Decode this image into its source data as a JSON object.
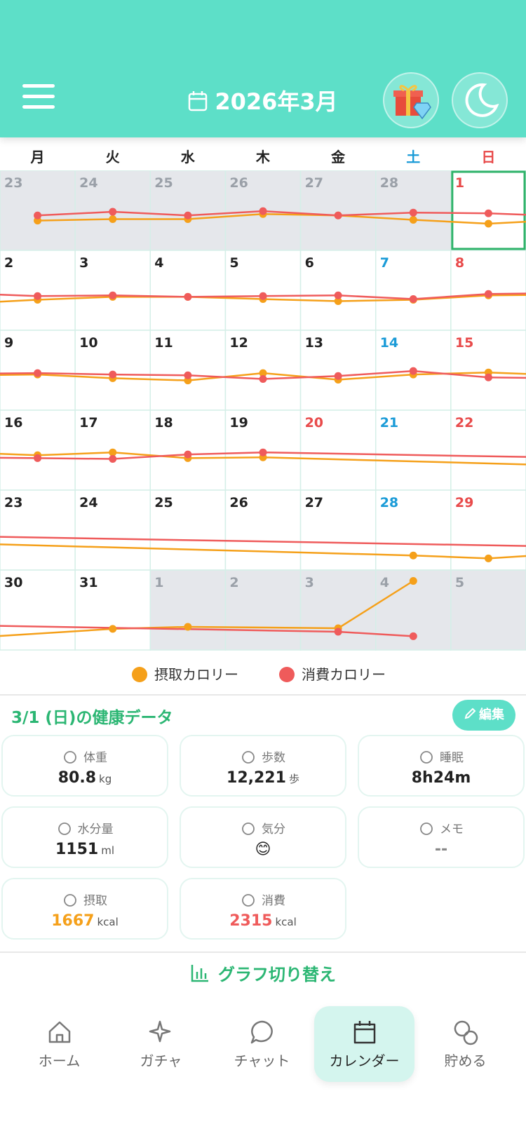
{
  "header": {
    "title": "2026年3月"
  },
  "calendar": {
    "weekdays": [
      "月",
      "火",
      "水",
      "木",
      "金",
      "土",
      "日"
    ],
    "weeks": [
      [
        {
          "day": 23,
          "muted": true
        },
        {
          "day": 24,
          "muted": true
        },
        {
          "day": 25,
          "muted": true
        },
        {
          "day": 26,
          "muted": true
        },
        {
          "day": 27,
          "muted": true
        },
        {
          "day": 28,
          "muted": true
        },
        {
          "day": 1,
          "selected": true
        }
      ],
      [
        {
          "day": 2
        },
        {
          "day": 3
        },
        {
          "day": 4
        },
        {
          "day": 5
        },
        {
          "day": 6
        },
        {
          "day": 7
        },
        {
          "day": 8
        }
      ],
      [
        {
          "day": 9
        },
        {
          "day": 10
        },
        {
          "day": 11
        },
        {
          "day": 12
        },
        {
          "day": 13
        },
        {
          "day": 14
        },
        {
          "day": 15
        }
      ],
      [
        {
          "day": 16
        },
        {
          "day": 17
        },
        {
          "day": 18
        },
        {
          "day": 19
        },
        {
          "day": 20,
          "holiday": true
        },
        {
          "day": 21
        },
        {
          "day": 22
        }
      ],
      [
        {
          "day": 23
        },
        {
          "day": 24
        },
        {
          "day": 25
        },
        {
          "day": 26
        },
        {
          "day": 27
        },
        {
          "day": 28
        },
        {
          "day": 29
        }
      ],
      [
        {
          "day": 30
        },
        {
          "day": 31
        },
        {
          "day": 1,
          "muted": true
        },
        {
          "day": 2,
          "muted": true
        },
        {
          "day": 3,
          "muted": true
        },
        {
          "day": 4,
          "muted": true
        },
        {
          "day": 5,
          "muted": true
        }
      ]
    ]
  },
  "chart_data": {
    "type": "line",
    "ylim": [
      0,
      5000
    ],
    "series": [
      {
        "name": "摂取カロリー",
        "color": "#f5a01a",
        "values": [
          1860,
          1950,
          1950,
          2270,
          2180,
          1910,
          1667,
          1910,
          2090,
          2090,
          1950,
          1820,
          1910,
          2180,
          2230,
          2000,
          1860,
          2320,
          1910,
          2230,
          2360,
          2180,
          2360,
          2000,
          2050,
          null,
          null,
          null,
          null,
          null,
          null,
          null,
          null,
          910,
          730,
          null,
          1320,
          1450,
          null,
          1360,
          4320,
          null
        ]
      },
      {
        "name": "消費カロリー",
        "color": "#ef5b5b",
        "values": [
          2180,
          2410,
          2180,
          2450,
          2180,
          2360,
          2315,
          2140,
          2180,
          2090,
          2140,
          2180,
          1950,
          2270,
          2320,
          2230,
          2180,
          1950,
          2140,
          2450,
          2050,
          2000,
          1950,
          2230,
          2360,
          null,
          null,
          null,
          null,
          null,
          null,
          null,
          null,
          null,
          null,
          null,
          null,
          null,
          null,
          1140,
          860,
          null
        ]
      }
    ]
  },
  "health": {
    "title": "3/1 (日)の健康データ",
    "edit": "編集",
    "cards": [
      {
        "label": "体重",
        "value": 80.8,
        "unit": "kg"
      },
      {
        "label": "歩数",
        "value": "12,221",
        "unit": "歩"
      },
      {
        "label": "睡眠",
        "value": "8h24m"
      },
      {
        "label": "水分量",
        "value": 1151,
        "unit": "ml"
      },
      {
        "label": "気分",
        "value": "😊"
      },
      {
        "label": "メモ",
        "value": "--"
      },
      {
        "label": "摂取",
        "value": 1667,
        "unit": "kcal"
      },
      {
        "label": "消費",
        "value": 2315,
        "unit": "kcal"
      }
    ]
  },
  "graph_toggle": "グラフ切り替え",
  "nav": {
    "items": [
      "ホーム",
      "ガチャ",
      "チャット",
      "カレンダー",
      "貯める"
    ],
    "active": 3
  }
}
